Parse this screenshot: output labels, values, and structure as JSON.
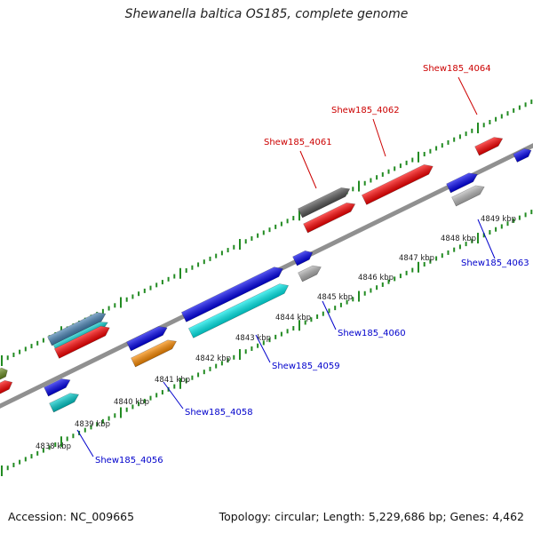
{
  "title": "Shewanella baltica OS185, complete genome",
  "footer": {
    "accession": "Accession: NC_009665",
    "summary": "Topology: circular; Length: 5,229,686 bp; Genes: 4,462"
  },
  "colors": {
    "backbone": "#8c8c8c",
    "ticks": "#228b22",
    "top_labels": "#cc0000",
    "bottom_labels": "#0000cc",
    "kbp_text": "#222222"
  },
  "scale_labels": [
    "4838 kbp",
    "4839 kbp",
    "4840 kbp",
    "4841 kbp",
    "4842 kbp",
    "4843 kbp",
    "4844 kbp",
    "4845 kbp",
    "4846 kbp",
    "4847 kbp",
    "4848 kbp",
    "4849 kbp"
  ],
  "gene_labels": [
    {
      "text": "Shew185_4064",
      "color": "red"
    },
    {
      "text": "Shew185_4062",
      "color": "red"
    },
    {
      "text": "Shew185_4061",
      "color": "red"
    },
    {
      "text": "Shew185_4063",
      "color": "blue"
    },
    {
      "text": "Shew185_4060",
      "color": "blue"
    },
    {
      "text": "Shew185_4059",
      "color": "blue"
    },
    {
      "text": "Shew185_4058",
      "color": "blue"
    },
    {
      "text": "Shew185_4056",
      "color": "blue"
    }
  ],
  "features": [
    {
      "name": "feature-olive",
      "color": "#6b8e23"
    },
    {
      "name": "feature-red-left",
      "color": "#ff0000"
    },
    {
      "name": "feature-steelblue",
      "color": "#4682b4"
    },
    {
      "name": "feature-cyan-left",
      "color": "#00cccc"
    },
    {
      "name": "feature-red-mid",
      "color": "#ff0000"
    },
    {
      "name": "feature-blue-small",
      "color": "#0000ee"
    },
    {
      "name": "feature-cyan-small",
      "color": "#00cccc"
    },
    {
      "name": "feature-blue-4841",
      "color": "#0000ee"
    },
    {
      "name": "feature-orange",
      "color": "#ff8c00"
    },
    {
      "name": "feature-blue-long",
      "color": "#0000ee"
    },
    {
      "name": "feature-cyan-long",
      "color": "#00eeee"
    },
    {
      "name": "feature-blue-4845",
      "color": "#0000ee"
    },
    {
      "name": "feature-gray-small",
      "color": "#b0b0b0"
    },
    {
      "name": "feature-darkgray",
      "color": "#555555"
    },
    {
      "name": "feature-red-4061",
      "color": "#ff0000"
    },
    {
      "name": "feature-red-4062",
      "color": "#ff0000"
    },
    {
      "name": "feature-blue-4849",
      "color": "#0000ee"
    },
    {
      "name": "feature-lightgray",
      "color": "#b8b8b8"
    },
    {
      "name": "feature-red-4064",
      "color": "#ff0000"
    },
    {
      "name": "feature-blue-edge",
      "color": "#0000ee"
    }
  ]
}
